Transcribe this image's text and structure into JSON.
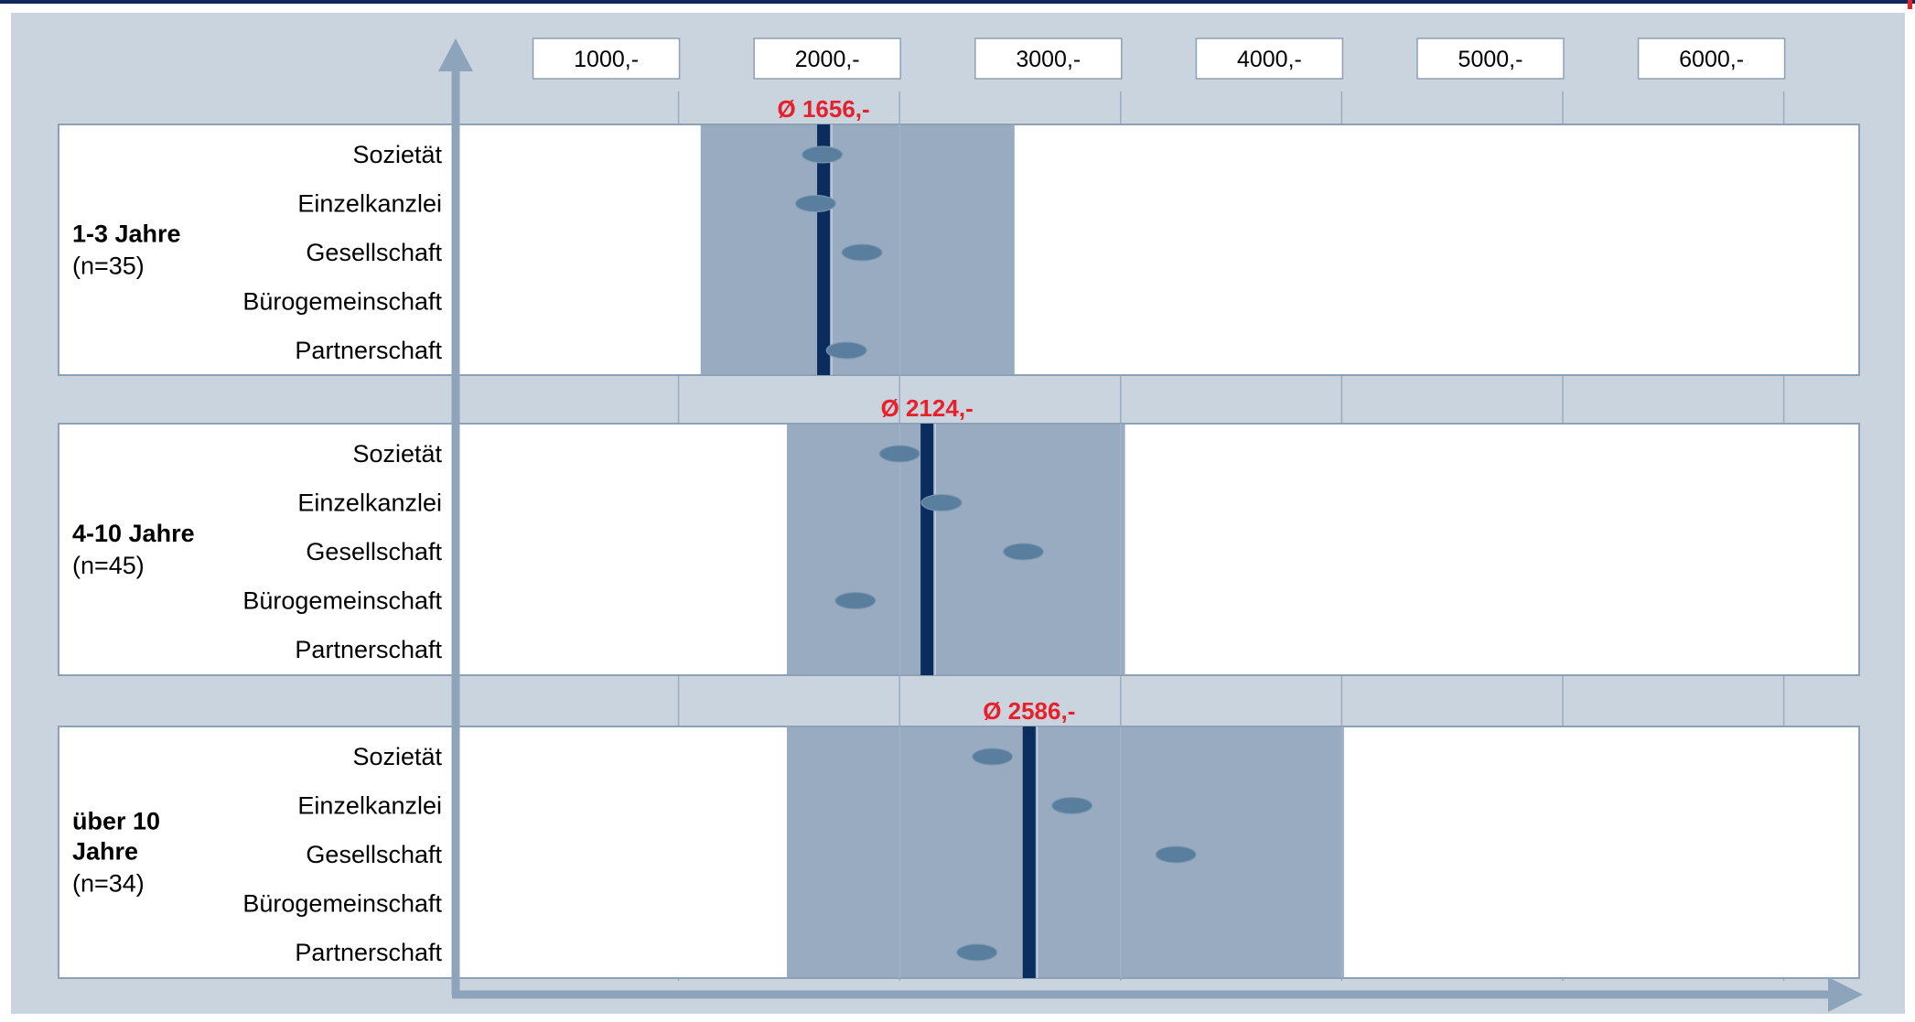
{
  "chart_data": {
    "type": "scatter",
    "title": "",
    "xlabel": "",
    "ylabel": "",
    "x_axis": {
      "ticks": [
        1000,
        2000,
        3000,
        4000,
        5000,
        6000
      ],
      "tick_labels": [
        "1000,-",
        "2000,-",
        "3000,-",
        "4000,-",
        "5000,-",
        "6000,-"
      ],
      "xlim": [
        0,
        6000
      ],
      "grid": true
    },
    "categories": [
      "Sozietät",
      "Einzelkanzlei",
      "Gesellschaft",
      "Bürogemeinschaft",
      "Partnerschaft"
    ],
    "groups": [
      {
        "label_lines": [
          "1-3 Jahre"
        ],
        "n_label": "(n=35)",
        "range": [
          1100,
          2520
        ],
        "mean": 1656,
        "mean_label": "Ø 1656,-",
        "values": [
          1650,
          1620,
          1830,
          null,
          1760
        ]
      },
      {
        "label_lines": [
          "4-10 Jahre"
        ],
        "n_label": "(n=45)",
        "range": [
          1490,
          3020
        ],
        "mean": 2124,
        "mean_label": "Ø 2124,-",
        "values": [
          2000,
          2190,
          2560,
          1800,
          null
        ]
      },
      {
        "label_lines": [
          "über 10",
          "Jahre"
        ],
        "n_label": "(n=34)",
        "range": [
          1490,
          4010
        ],
        "mean": 2586,
        "mean_label": "Ø 2586,-",
        "values": [
          2420,
          2780,
          3250,
          null,
          2350
        ]
      }
    ]
  }
}
